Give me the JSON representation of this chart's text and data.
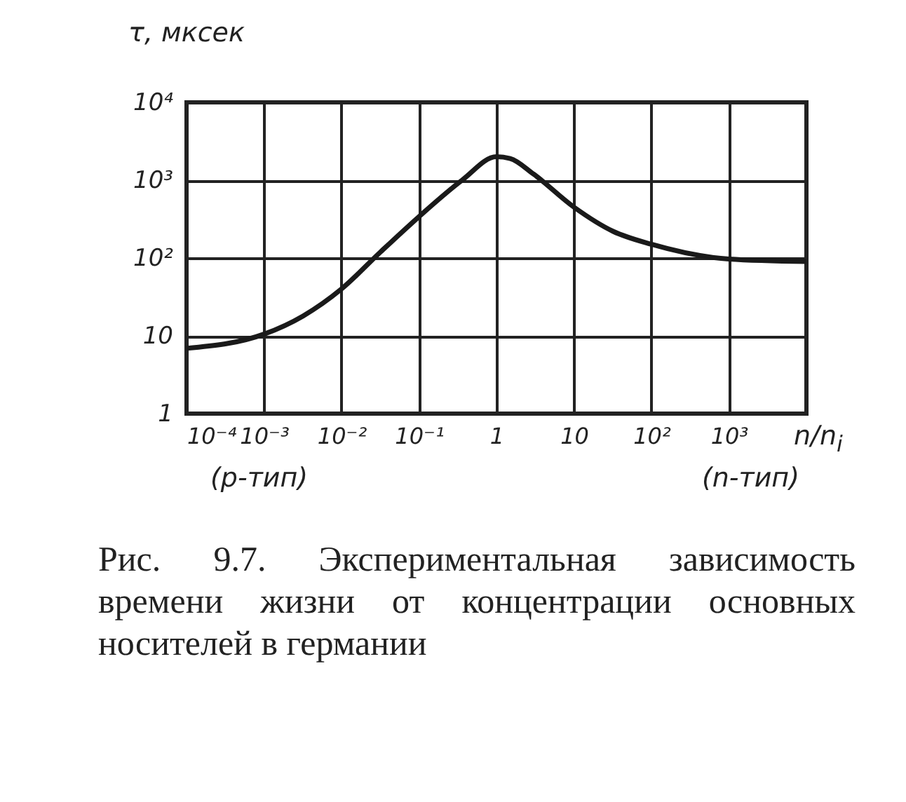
{
  "chart_data": {
    "type": "line",
    "xlabel": "n/n$_{i}$",
    "ylabel": "τ, мксек",
    "log": "xy",
    "grid": true,
    "xlim": [
      0.0001,
      10000
    ],
    "ylim": [
      1,
      10000
    ],
    "xticks": [
      {
        "value": 0.0001,
        "label": "10⁻⁴"
      },
      {
        "value": 0.001,
        "label": "10⁻³"
      },
      {
        "value": 0.01,
        "label": "10⁻²"
      },
      {
        "value": 0.1,
        "label": "10⁻¹"
      },
      1,
      10,
      {
        "value": 100,
        "label": "10²"
      },
      {
        "value": 1000,
        "label": "10³"
      },
      {
        "value": 10000,
        "label": null
      }
    ],
    "yticks": [
      1,
      10,
      {
        "value": 100,
        "label": "10²"
      },
      {
        "value": 1000,
        "label": "10³"
      },
      {
        "value": 10000,
        "label": "10⁴"
      }
    ],
    "series": [
      {
        "color": "#1a1a1a",
        "x": [
          0.0001,
          0.001,
          0.0032,
          0.01,
          0.032,
          0.1,
          0.36,
          1,
          1.5,
          3,
          10,
          32,
          100,
          1000,
          10000
        ],
        "values": [
          6.9,
          10.5,
          18,
          40,
          120,
          340,
          1000,
          2000,
          1900,
          1200,
          450,
          220,
          150,
          97,
          90
        ]
      }
    ],
    "annotations": [
      "(p-тип)",
      "(n-тип)",
      "Рис. 9.7. Экспериментальная зависимость времени жизни от концентрации основных носителей в германии"
    ]
  }
}
